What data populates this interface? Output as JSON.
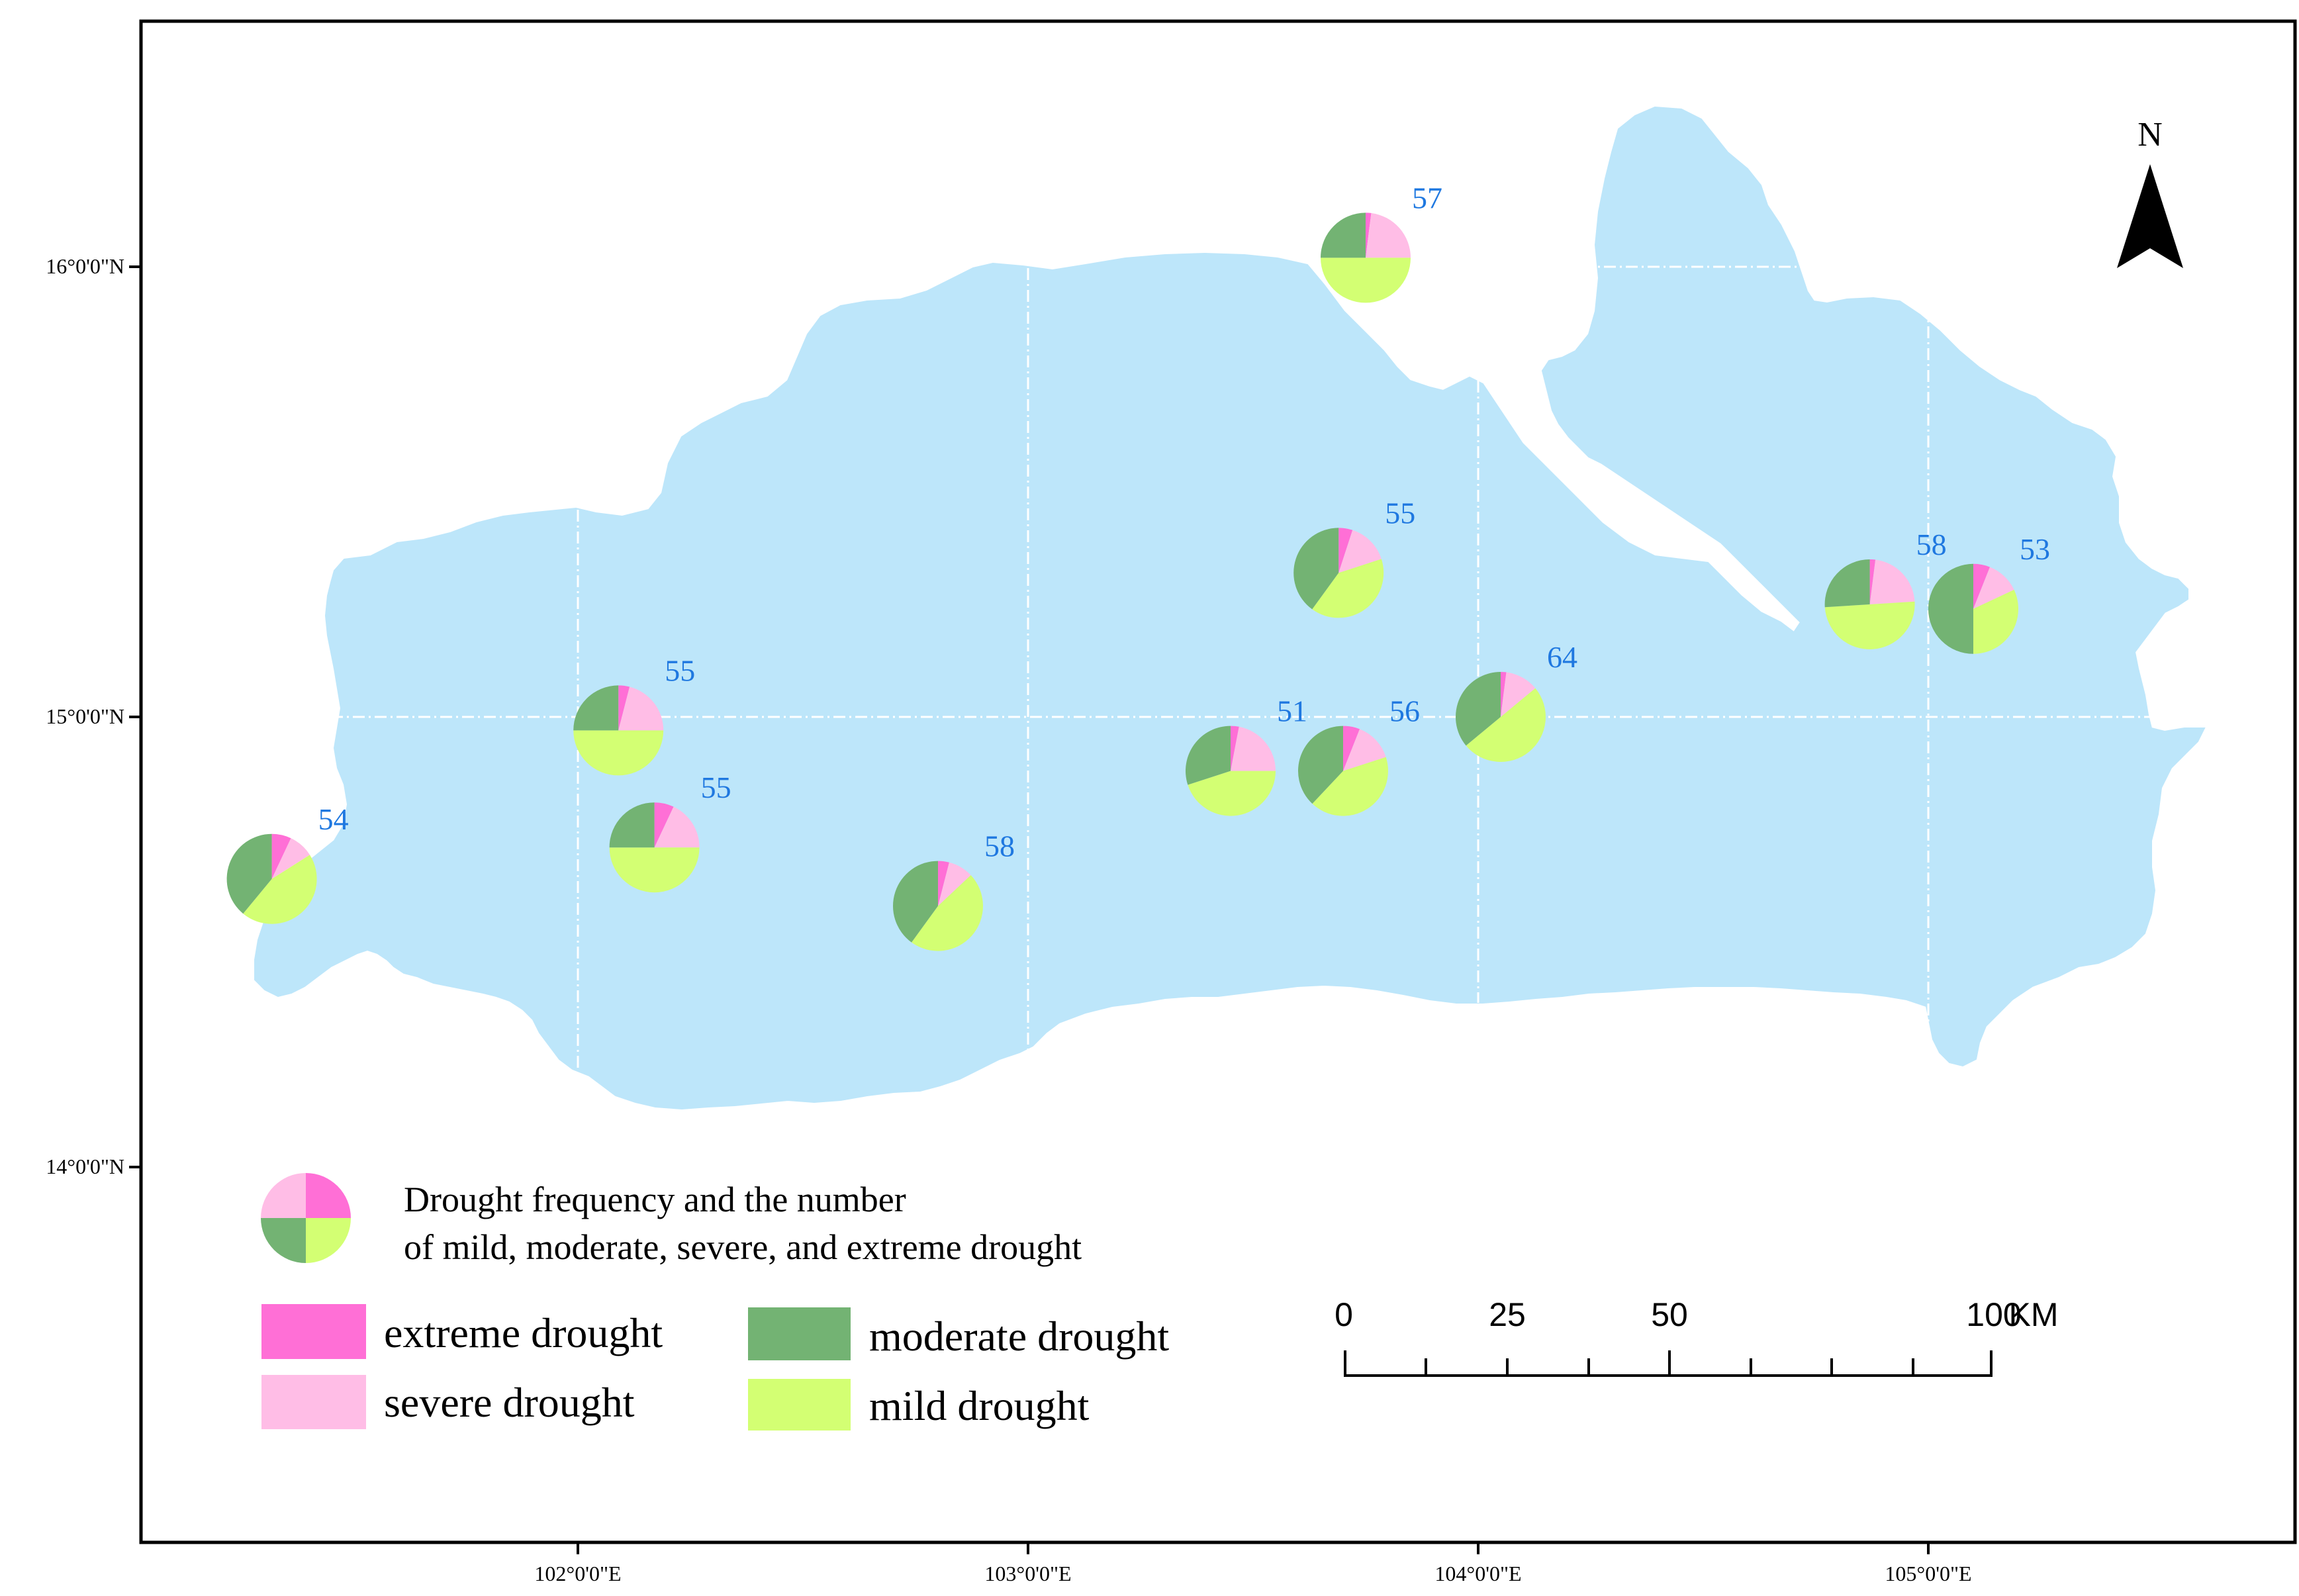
{
  "colors": {
    "basin_fill": "#bde6fa",
    "extreme": "#ff6fd6",
    "severe": "#ffbde6",
    "moderate": "#73b373",
    "mild": "#d3ff73",
    "station_label": "#1f78e0",
    "grid": "#ffffff",
    "frame": "#000000"
  },
  "latitude_labels": [
    "16°0'0\"N",
    "15°0'0\"N",
    "14°0'0\"N"
  ],
  "longitude_labels": [
    "102°0'0\"E",
    "103°0'0\"E",
    "104°0'0\"E",
    "105°0'0\"E"
  ],
  "north_arrow": {
    "label": "N"
  },
  "stations": [
    {
      "label": "57",
      "lon": 103.75,
      "lat": 16.02,
      "shares": {
        "extreme": 2,
        "severe": 23,
        "moderate": 25,
        "mild": 50
      }
    },
    {
      "label": "55",
      "lon": 103.69,
      "lat": 15.32,
      "shares": {
        "extreme": 5,
        "severe": 15,
        "moderate": 40,
        "mild": 40
      }
    },
    {
      "label": "58",
      "lon": 104.87,
      "lat": 15.25,
      "shares": {
        "extreme": 2,
        "severe": 22,
        "moderate": 26,
        "mild": 50
      }
    },
    {
      "label": "53",
      "lon": 105.1,
      "lat": 15.24,
      "shares": {
        "extreme": 6,
        "severe": 12,
        "moderate": 50,
        "mild": 32
      }
    },
    {
      "label": "55",
      "lon": 102.09,
      "lat": 14.97,
      "shares": {
        "extreme": 4,
        "severe": 21,
        "moderate": 25,
        "mild": 50
      }
    },
    {
      "label": "64",
      "lon": 104.05,
      "lat": 15.0,
      "shares": {
        "extreme": 2,
        "severe": 12,
        "moderate": 36,
        "mild": 50
      }
    },
    {
      "label": "51",
      "lon": 103.45,
      "lat": 14.88,
      "shares": {
        "extreme": 3,
        "severe": 22,
        "moderate": 30,
        "mild": 45
      }
    },
    {
      "label": "56",
      "lon": 103.7,
      "lat": 14.88,
      "shares": {
        "extreme": 6,
        "severe": 14,
        "moderate": 38,
        "mild": 42
      }
    },
    {
      "label": "55",
      "lon": 102.17,
      "lat": 14.71,
      "shares": {
        "extreme": 7,
        "severe": 18,
        "moderate": 25,
        "mild": 50
      }
    },
    {
      "label": "54",
      "lon": 101.32,
      "lat": 14.64,
      "shares": {
        "extreme": 7,
        "severe": 9,
        "moderate": 39,
        "mild": 45
      }
    },
    {
      "label": "58",
      "lon": 102.8,
      "lat": 14.58,
      "shares": {
        "extreme": 4,
        "severe": 9,
        "moderate": 40,
        "mild": 47
      }
    }
  ],
  "legend": {
    "title_line1": "Drought frequency and the number",
    "title_line2": "of mild, moderate, severe, and extreme drought",
    "items": {
      "extreme": "extreme drought",
      "severe": "severe drought",
      "moderate": "moderate drought",
      "mild": "mild drought"
    }
  },
  "scale_bar": {
    "ticks": [
      "0",
      "25",
      "50",
      "100"
    ],
    "unit": "KM"
  }
}
